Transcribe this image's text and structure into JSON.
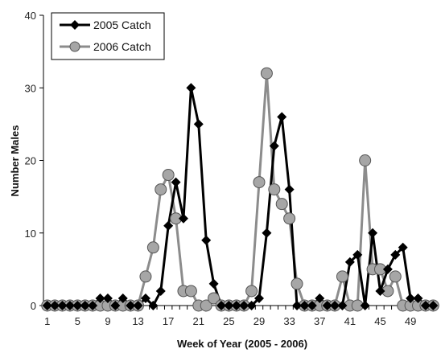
{
  "chart_data": {
    "type": "line",
    "xlabel": "Week of Year (2005 - 2006)",
    "ylabel": "Number Males",
    "ylim": [
      0,
      40
    ],
    "yticks": [
      0,
      10,
      20,
      30,
      40
    ],
    "xlim": [
      1,
      52
    ],
    "xtick_labels": [
      "1",
      "5",
      "9",
      "13",
      "17",
      "21",
      "25",
      "29",
      "33",
      "37",
      "41",
      "45",
      "49"
    ],
    "xtick_values": [
      1,
      5,
      9,
      13,
      17,
      21,
      25,
      29,
      33,
      37,
      41,
      45,
      49
    ],
    "grid": false,
    "legend_position": "top-left",
    "series": [
      {
        "name": "2005 Catch",
        "color": "#000000",
        "marker": "diamond",
        "x": [
          1,
          2,
          3,
          4,
          5,
          6,
          7,
          8,
          9,
          10,
          11,
          12,
          13,
          14,
          15,
          16,
          17,
          18,
          19,
          20,
          21,
          22,
          23,
          24,
          25,
          26,
          27,
          28,
          29,
          30,
          31,
          32,
          33,
          34,
          35,
          36,
          37,
          38,
          39,
          40,
          41,
          42,
          43,
          44,
          45,
          46,
          47,
          48,
          49,
          50,
          51,
          52
        ],
        "y": [
          0,
          0,
          0,
          0,
          0,
          0,
          0,
          1,
          1,
          0,
          1,
          0,
          0,
          1,
          0,
          2,
          11,
          17,
          12,
          30,
          25,
          9,
          3,
          0,
          0,
          0,
          0,
          0,
          1,
          10,
          22,
          26,
          16,
          0,
          0,
          0,
          1,
          0,
          0,
          0,
          6,
          7,
          0,
          10,
          2,
          5,
          7,
          8,
          1,
          1,
          0,
          0
        ]
      },
      {
        "name": "2006 Catch",
        "color": "#8c8c8c",
        "marker": "circle",
        "x": [
          1,
          2,
          3,
          4,
          5,
          6,
          7,
          8,
          9,
          10,
          11,
          12,
          13,
          14,
          15,
          16,
          17,
          18,
          19,
          20,
          21,
          22,
          23,
          24,
          25,
          26,
          27,
          28,
          29,
          30,
          31,
          32,
          33,
          34,
          35,
          36,
          37,
          38,
          39,
          40,
          41,
          42,
          43,
          44,
          45,
          46,
          47,
          48,
          49,
          50,
          51,
          52
        ],
        "y": [
          0,
          0,
          0,
          0,
          0,
          0,
          0,
          0,
          0,
          0,
          0,
          0,
          0,
          4,
          8,
          16,
          18,
          12,
          2,
          2,
          0,
          0,
          1,
          0,
          0,
          0,
          0,
          2,
          17,
          32,
          16,
          14,
          12,
          3,
          0,
          0,
          0,
          0,
          0,
          4,
          0,
          0,
          20,
          5,
          5,
          2,
          4,
          0,
          0,
          0,
          0,
          0
        ]
      }
    ]
  }
}
